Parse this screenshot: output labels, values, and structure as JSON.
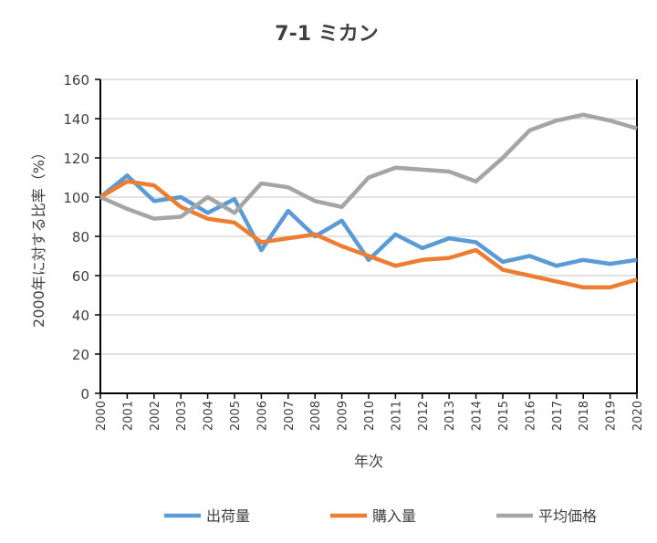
{
  "chart_data": {
    "type": "line",
    "title": "7-1 ミカン",
    "xlabel": "年次",
    "ylabel": "2000年に対する比率（%）",
    "ylim": [
      0,
      160
    ],
    "yticks": [
      0,
      20,
      40,
      60,
      80,
      100,
      120,
      140,
      160
    ],
    "grid": true,
    "legend": "bottom",
    "x": [
      "2000",
      "2001",
      "2002",
      "2003",
      "2004",
      "2005",
      "2006",
      "2007",
      "2008",
      "2009",
      "2010",
      "2011",
      "2012",
      "2013",
      "2014",
      "2015",
      "2016",
      "2017",
      "2018",
      "2019",
      "2020"
    ],
    "series": [
      {
        "name": "出荷量",
        "color": "#5b9bd5",
        "values": [
          100,
          111,
          98,
          100,
          92,
          99,
          73,
          93,
          80,
          88,
          68,
          81,
          74,
          79,
          77,
          67,
          70,
          65,
          68,
          66,
          68
        ]
      },
      {
        "name": "購入量",
        "color": "#ed7d31",
        "values": [
          100,
          108,
          106,
          95,
          89,
          87,
          77,
          79,
          81,
          75,
          70,
          65,
          68,
          69,
          73,
          63,
          60,
          57,
          54,
          54,
          58
        ]
      },
      {
        "name": "平均価格",
        "color": "#a5a5a5",
        "values": [
          100,
          94,
          89,
          90,
          100,
          92,
          107,
          105,
          98,
          95,
          110,
          115,
          114,
          113,
          108,
          120,
          134,
          139,
          142,
          139,
          135
        ]
      }
    ]
  }
}
